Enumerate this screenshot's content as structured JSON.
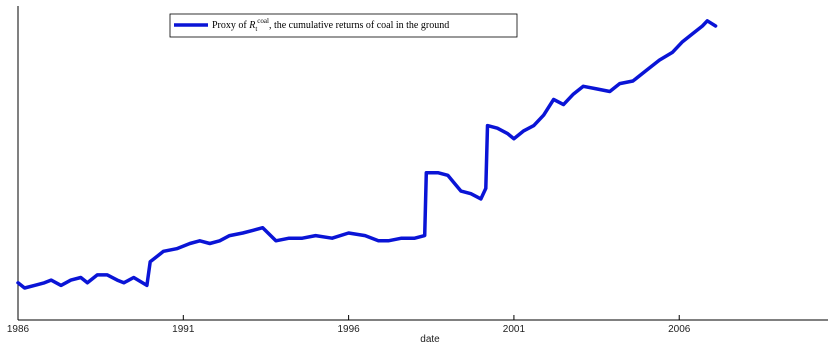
{
  "chart_data": {
    "type": "line",
    "title": "",
    "xlabel": "date",
    "ylabel": "",
    "xlim": [
      1986,
      2010.5
    ],
    "ylim": [
      0,
      1
    ],
    "grid": false,
    "legend_position": "top-center",
    "x_ticks": [
      1986,
      1991,
      1996,
      2001,
      2006
    ],
    "tick_labels": [
      "1986",
      "1991",
      "1996",
      "2001",
      "2006"
    ],
    "series": [
      {
        "name_prefix": "Proxy of ",
        "name_symbol": "R",
        "name_sub": "t",
        "name_sup": "coal",
        "name_suffix": ", the cumulative returns of coal in the ground",
        "color": "#0a14d6",
        "x": [
          1986.0,
          1986.2,
          1986.5,
          1986.8,
          1987.0,
          1987.3,
          1987.6,
          1987.9,
          1988.1,
          1988.4,
          1988.7,
          1989.0,
          1989.2,
          1989.5,
          1989.9,
          1990.0,
          1990.4,
          1990.8,
          1991.2,
          1991.5,
          1991.8,
          1992.1,
          1992.4,
          1992.8,
          1993.1,
          1993.4,
          1993.8,
          1994.2,
          1994.6,
          1995.0,
          1995.5,
          1996.0,
          1996.5,
          1996.9,
          1997.2,
          1997.6,
          1998.0,
          1998.3,
          1998.35,
          1998.7,
          1999.0,
          1999.2,
          1999.4,
          1999.7,
          2000.0,
          2000.15,
          2000.2,
          2000.5,
          2000.8,
          2001.0,
          2001.3,
          2001.6,
          2001.9,
          2002.2,
          2002.5,
          2002.8,
          2003.1,
          2003.5,
          2003.9,
          2004.2,
          2004.6,
          2005.0,
          2005.4,
          2005.8,
          2006.1,
          2006.4,
          2006.7,
          2006.85,
          2007.1
        ],
        "values": [
          0.02,
          0.0,
          0.01,
          0.02,
          0.03,
          0.01,
          0.03,
          0.04,
          0.02,
          0.05,
          0.05,
          0.03,
          0.02,
          0.04,
          0.01,
          0.1,
          0.14,
          0.15,
          0.17,
          0.18,
          0.17,
          0.18,
          0.2,
          0.21,
          0.22,
          0.23,
          0.18,
          0.19,
          0.19,
          0.2,
          0.19,
          0.21,
          0.2,
          0.18,
          0.18,
          0.19,
          0.19,
          0.2,
          0.44,
          0.44,
          0.43,
          0.4,
          0.37,
          0.36,
          0.34,
          0.38,
          0.62,
          0.61,
          0.59,
          0.57,
          0.6,
          0.62,
          0.66,
          0.72,
          0.7,
          0.74,
          0.77,
          0.76,
          0.75,
          0.78,
          0.79,
          0.83,
          0.87,
          0.9,
          0.94,
          0.97,
          1.0,
          1.02,
          1.0
        ]
      }
    ]
  }
}
